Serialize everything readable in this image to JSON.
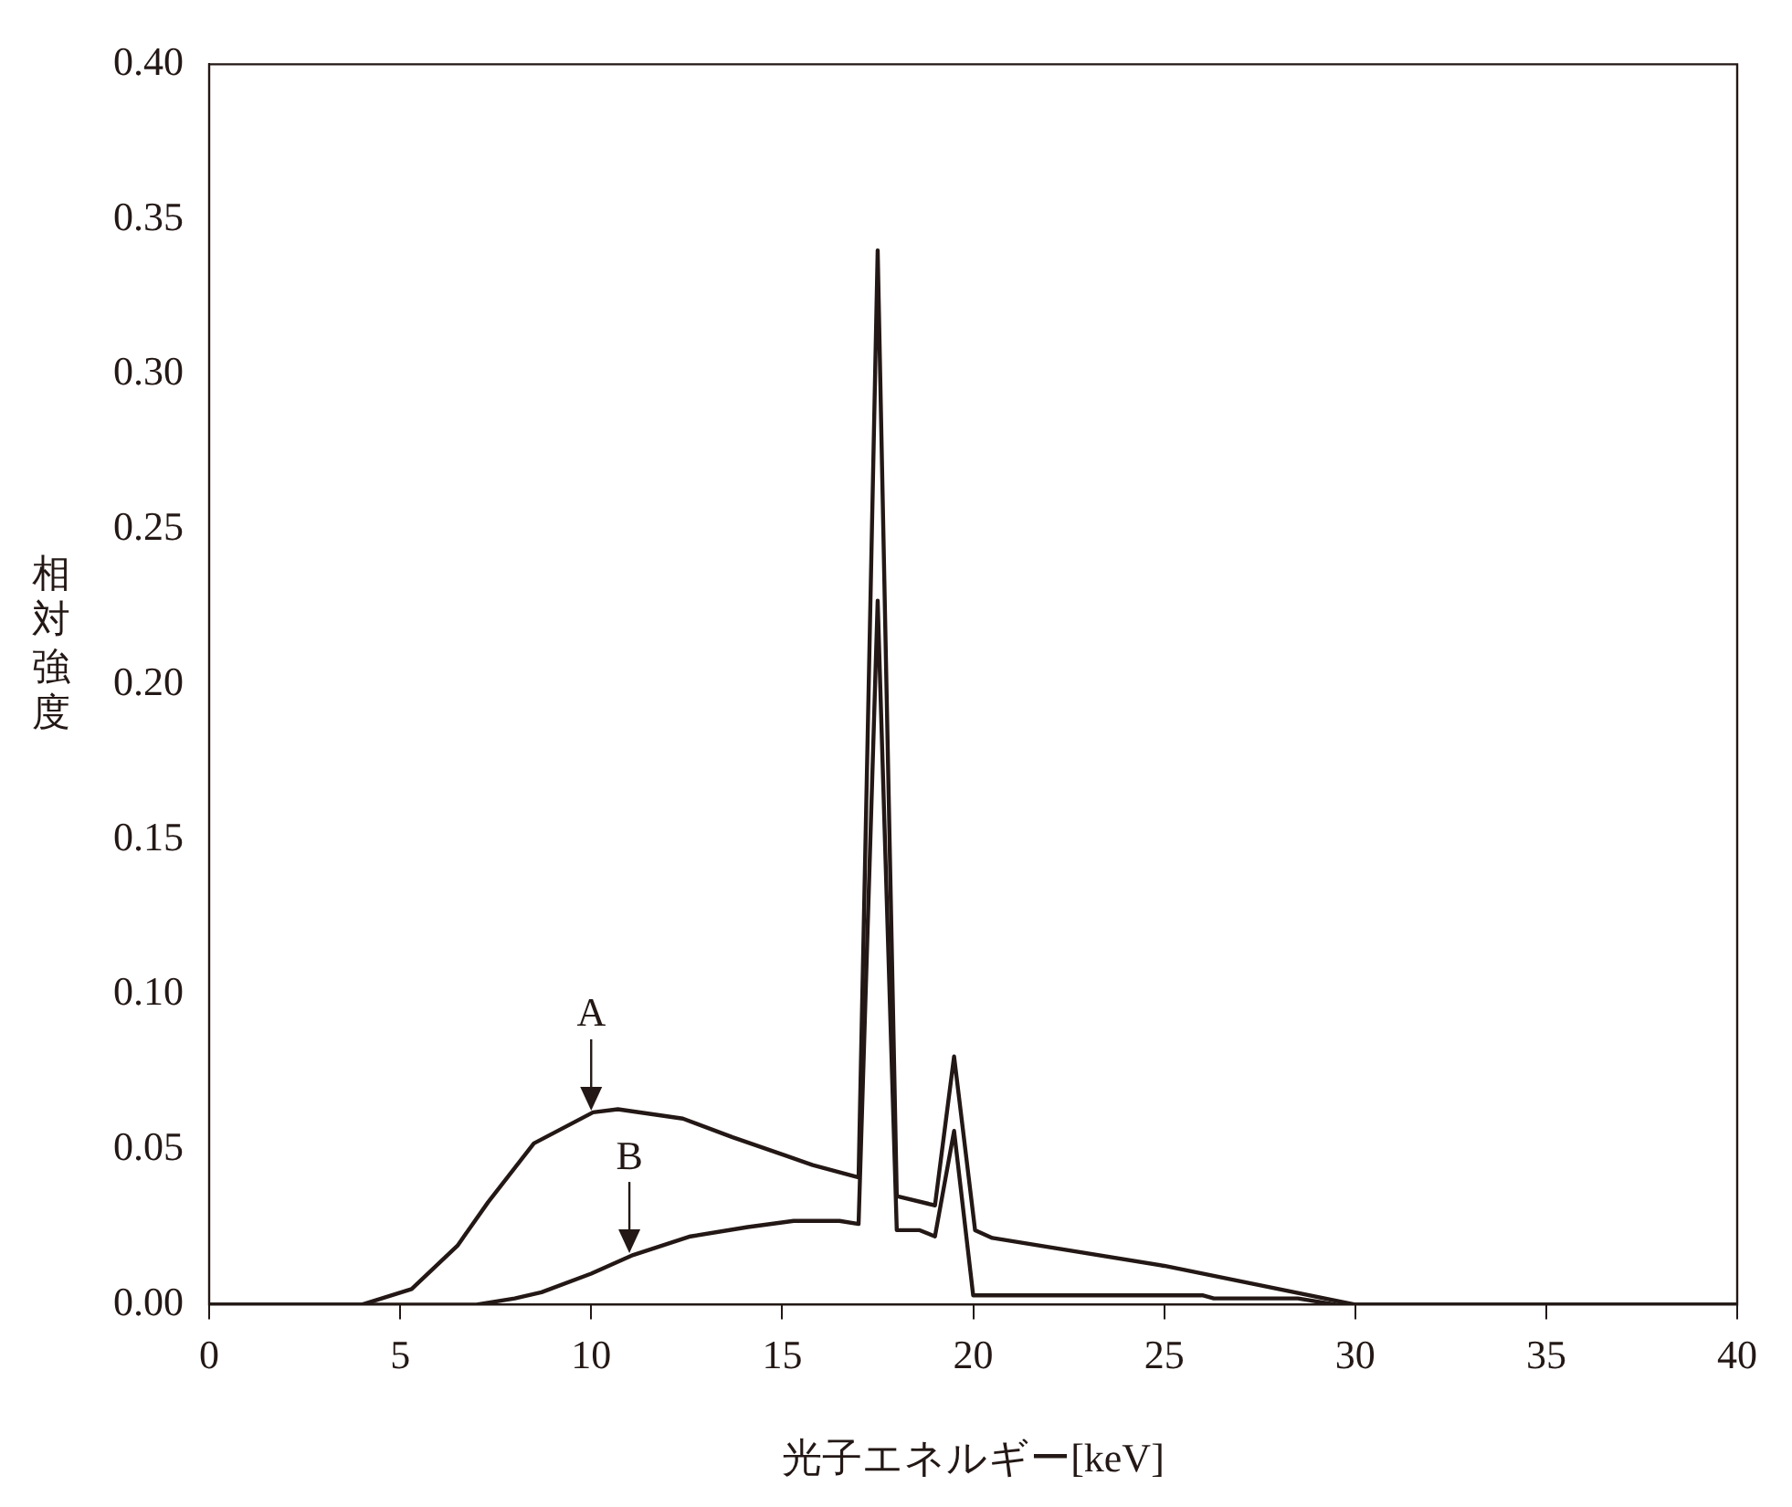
{
  "chart_data": {
    "type": "line",
    "xlabel": "光子エネルギー[keV]",
    "ylabel": "相対強度",
    "xlim": [
      0,
      40
    ],
    "xticks": [
      0,
      5,
      10,
      15,
      20,
      25,
      30,
      35,
      40
    ],
    "ylim": [
      0,
      0.4
    ],
    "yticks": [
      {
        "value": 0,
        "label": "0.00"
      },
      {
        "value": 0.05,
        "label": "0.05"
      },
      {
        "value": 0.1,
        "label": "0.10"
      },
      {
        "value": 0.15,
        "label": "0.15"
      },
      {
        "value": 0.2,
        "label": "0.20"
      },
      {
        "value": 0.25,
        "label": "0.25"
      },
      {
        "value": 0.3,
        "label": "0.30"
      },
      {
        "value": 0.35,
        "label": "0.35"
      },
      {
        "value": 0.4,
        "label": "0.40"
      }
    ],
    "grid": false,
    "legend": false,
    "marker": "none",
    "line_style": "solid",
    "series": [
      {
        "color": "#231815",
        "x": [
          0,
          4,
          5.3,
          6.5,
          7.3,
          8.5,
          10.05,
          10.7,
          12.4,
          13.7,
          15.1,
          15.8,
          17.0,
          17.5,
          18.0,
          19.0,
          19.5,
          20.05,
          20.5,
          25,
          30,
          40
        ],
        "values": [
          0,
          0,
          0.005,
          0.019,
          0.033,
          0.052,
          0.062,
          0.063,
          0.06,
          0.054,
          0.048,
          0.045,
          0.041,
          0.34,
          0.035,
          0.032,
          0.08,
          0.024,
          0.0215,
          0.0125,
          0,
          0
        ]
      },
      {
        "color": "#231815",
        "x": [
          0,
          7,
          8,
          8.7,
          10,
          11.1,
          12.6,
          14.1,
          15.3,
          16.5,
          17.0,
          17.5,
          18.0,
          18.6,
          19.0,
          19.5,
          20.0,
          26.0,
          26.3,
          28.5,
          29.5,
          40
        ],
        "values": [
          0,
          0,
          0.002,
          0.004,
          0.01,
          0.016,
          0.022,
          0.025,
          0.027,
          0.027,
          0.026,
          0.227,
          0.024,
          0.024,
          0.022,
          0.056,
          0.003,
          0.003,
          0.002,
          0.002,
          0,
          0
        ]
      }
    ],
    "annotations": [
      {
        "text": "A",
        "x": 10,
        "y": 0.062
      },
      {
        "text": "B",
        "x": 11,
        "y": 0.016
      }
    ]
  }
}
